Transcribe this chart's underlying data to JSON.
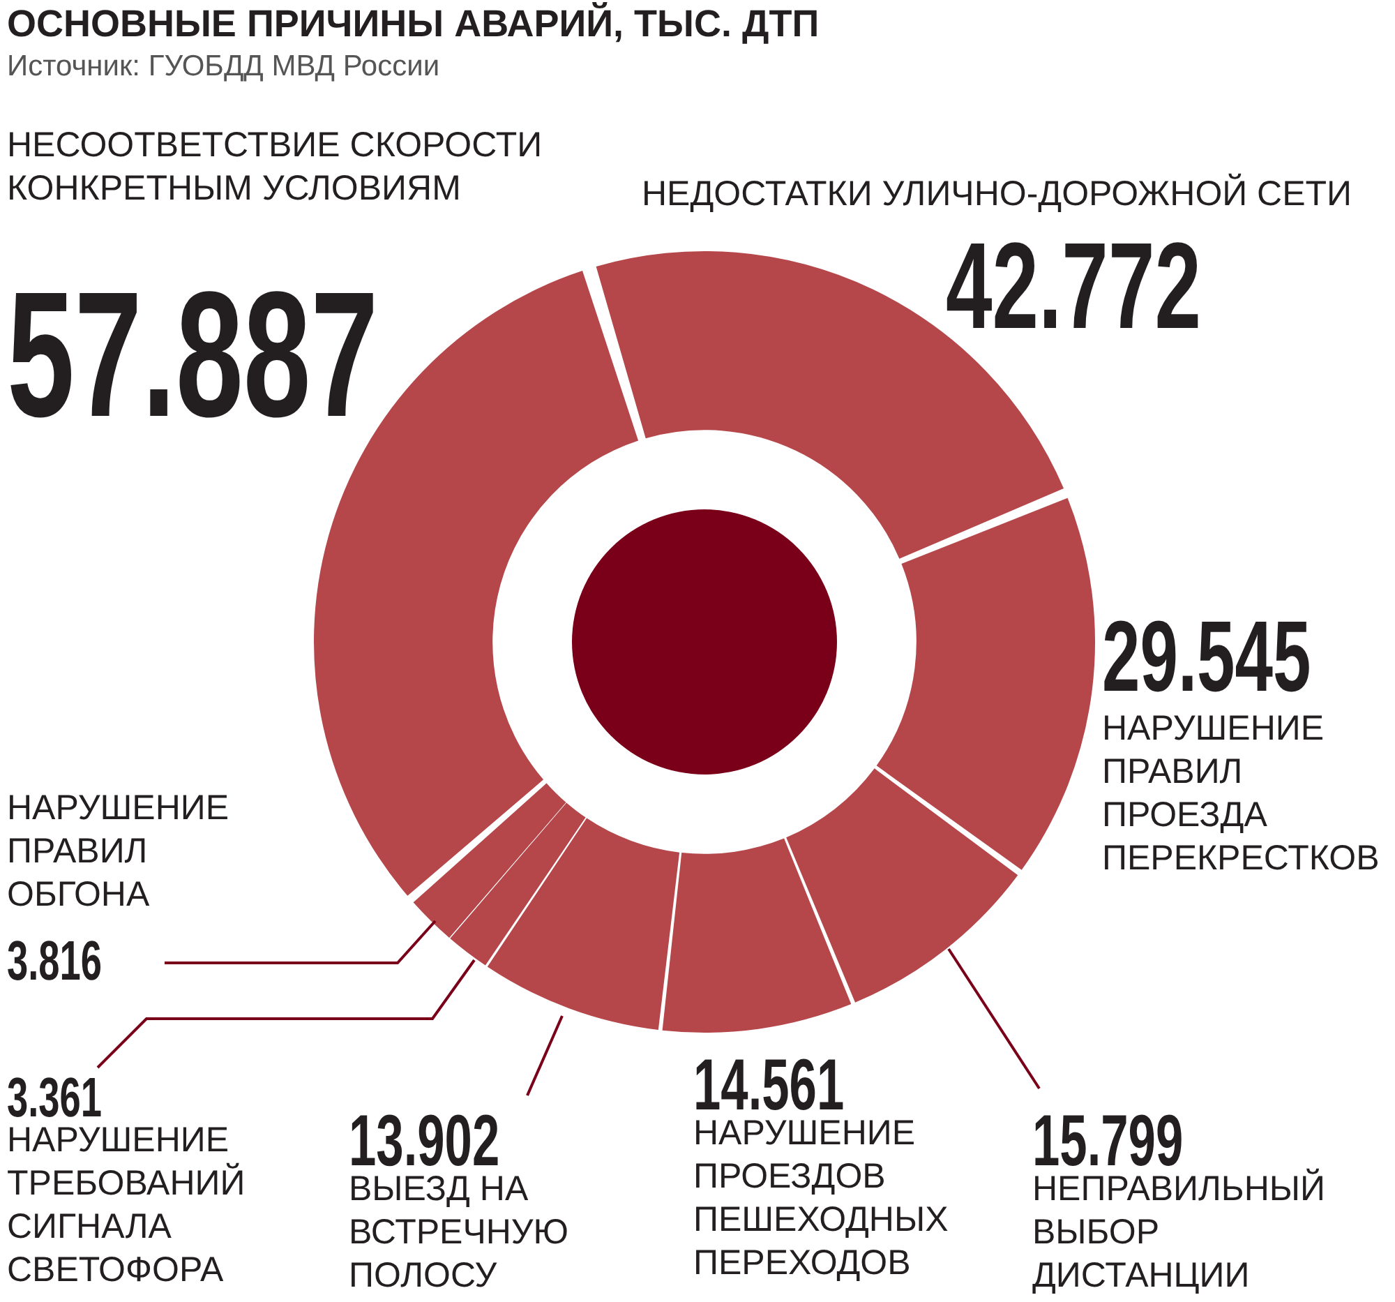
{
  "chart_data": {
    "type": "donut",
    "title": "ОСНОВНЫЕ ПРИЧИНЫ АВАРИЙ, ТЫС. ДТП",
    "annotations": [
      "Источник: ГУОБДД МВД России"
    ],
    "categories": [
      "НЕДОСТАТКИ УЛИЧНО-ДОРОЖНОЙ СЕТИ",
      "НАРУШЕНИЕ ПРАВИЛ ПРОЕЗДА ПЕРЕКРЕСТКОВ",
      "НЕПРАВИЛЬНЫЙ ВЫБОР ДИСТАНЦИИ",
      "НАРУШЕНИЕ ПРОЕЗДОВ ПЕШЕХОДНЫХ ПЕРЕХОДОВ",
      "ВЫЕЗД НА ВСТРЕЧНУЮ ПОЛОСУ",
      "НАРУШЕНИЕ ТРЕБОВАНИЙ СИГНАЛА СВЕТОФОРА",
      "НАРУШЕНИЕ ПРАВИЛ ОБГОНА",
      "НЕСООТВЕТСТВИЕ СКОРОСТИ КОНКРЕТНЫМ УСЛОВИЯМ"
    ],
    "values": [
      42.772,
      29.545,
      15.799,
      14.561,
      13.902,
      3.361,
      3.816,
      57.887
    ],
    "colors": [
      "#b5474b",
      "#b5474b",
      "#b5474b",
      "#b5474b",
      "#b5474b",
      "#b5474b",
      "#b5474b",
      "#b5474b"
    ],
    "data_labels": true,
    "legend": false
  }
}
